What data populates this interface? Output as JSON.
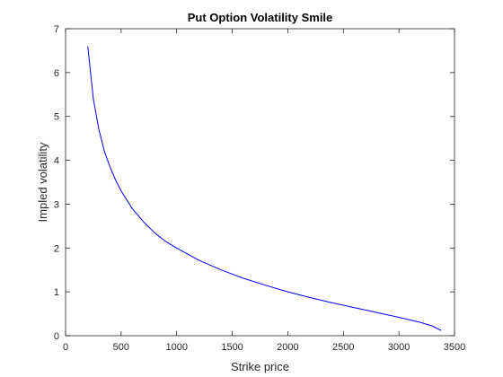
{
  "chart_data": {
    "type": "line",
    "title": "Put Option Volatility Smile",
    "xlabel": "Strike price",
    "ylabel": "Impled volatility",
    "xlim": [
      0,
      3500
    ],
    "ylim": [
      0,
      7
    ],
    "xticks": [
      0,
      500,
      1000,
      1500,
      2000,
      2500,
      3000,
      3500
    ],
    "yticks": [
      0,
      1,
      2,
      3,
      4,
      5,
      6,
      7
    ],
    "grid": false,
    "legend": "none",
    "series": [
      {
        "color": "#0000ff",
        "x": [
          200,
          250,
          300,
          350,
          400,
          450,
          500,
          600,
          700,
          800,
          900,
          1000,
          1200,
          1400,
          1600,
          1800,
          2000,
          2200,
          2400,
          2600,
          2800,
          3000,
          3100,
          3200,
          3300,
          3380
        ],
        "y": [
          6.6,
          5.4,
          4.7,
          4.2,
          3.85,
          3.55,
          3.3,
          2.9,
          2.6,
          2.35,
          2.15,
          2.0,
          1.72,
          1.5,
          1.31,
          1.15,
          1.0,
          0.87,
          0.75,
          0.64,
          0.53,
          0.42,
          0.36,
          0.3,
          0.22,
          0.12
        ]
      }
    ]
  }
}
